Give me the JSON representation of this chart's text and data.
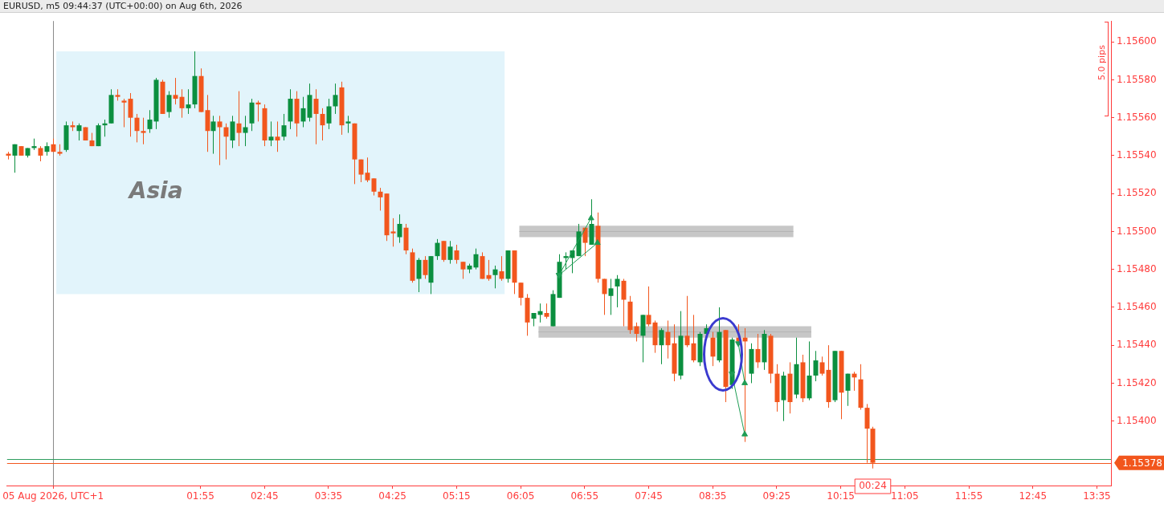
{
  "chart_data": {
    "type": "candlestick",
    "title": "EURUSD, m5 09:44:37 (UTC+00:00) on Aug 6th, 2026",
    "x": [
      "2026-08-05T23:25",
      "2026-08-05T23:30",
      "2026-08-05T23:35",
      "2026-08-05T23:40",
      "2026-08-05T23:45",
      "2026-08-05T23:50",
      "2026-08-05T23:55",
      "2026-08-06T00:00",
      "2026-08-06T00:05",
      "2026-08-06T00:10",
      "2026-08-06T00:15",
      "2026-08-06T00:20",
      "2026-08-06T00:25",
      "2026-08-06T00:30",
      "2026-08-06T00:35",
      "2026-08-06T00:40",
      "2026-08-06T00:45",
      "2026-08-06T00:50",
      "2026-08-06T00:55",
      "2026-08-06T01:00",
      "2026-08-06T01:05",
      "2026-08-06T01:10",
      "2026-08-06T01:15",
      "2026-08-06T01:20",
      "2026-08-06T01:25",
      "2026-08-06T01:30",
      "2026-08-06T01:35",
      "2026-08-06T01:40",
      "2026-08-06T01:45",
      "2026-08-06T01:50",
      "2026-08-06T01:55",
      "2026-08-06T02:00",
      "2026-08-06T02:05",
      "2026-08-06T02:10",
      "2026-08-06T02:15",
      "2026-08-06T02:20",
      "2026-08-06T02:25",
      "2026-08-06T02:30",
      "2026-08-06T02:35",
      "2026-08-06T02:40",
      "2026-08-06T02:45",
      "2026-08-06T02:50",
      "2026-08-06T02:55",
      "2026-08-06T03:00",
      "2026-08-06T03:05",
      "2026-08-06T03:10",
      "2026-08-06T03:15",
      "2026-08-06T03:20",
      "2026-08-06T03:25",
      "2026-08-06T03:30",
      "2026-08-06T03:35",
      "2026-08-06T03:40",
      "2026-08-06T03:45",
      "2026-08-06T03:50",
      "2026-08-06T03:55",
      "2026-08-06T04:00",
      "2026-08-06T04:05",
      "2026-08-06T04:10",
      "2026-08-06T04:15",
      "2026-08-06T04:20",
      "2026-08-06T04:25",
      "2026-08-06T04:30",
      "2026-08-06T04:35",
      "2026-08-06T04:40",
      "2026-08-06T04:45",
      "2026-08-06T04:50",
      "2026-08-06T04:55",
      "2026-08-06T05:00",
      "2026-08-06T05:05",
      "2026-08-06T05:10",
      "2026-08-06T05:15",
      "2026-08-06T05:20",
      "2026-08-06T05:25",
      "2026-08-06T05:30",
      "2026-08-06T05:35",
      "2026-08-06T05:40",
      "2026-08-06T05:45",
      "2026-08-06T05:50",
      "2026-08-06T05:55",
      "2026-08-06T06:00",
      "2026-08-06T06:05",
      "2026-08-06T06:10",
      "2026-08-06T06:15",
      "2026-08-06T06:20",
      "2026-08-06T06:25",
      "2026-08-06T06:30",
      "2026-08-06T06:35",
      "2026-08-06T06:40",
      "2026-08-06T06:45",
      "2026-08-06T06:50",
      "2026-08-06T06:55",
      "2026-08-06T07:00",
      "2026-08-06T07:05",
      "2026-08-06T07:10",
      "2026-08-06T07:15",
      "2026-08-06T07:20",
      "2026-08-06T07:25",
      "2026-08-06T07:30",
      "2026-08-06T07:35",
      "2026-08-06T07:40",
      "2026-08-06T07:45",
      "2026-08-06T07:50",
      "2026-08-06T07:55",
      "2026-08-06T08:00",
      "2026-08-06T08:05",
      "2026-08-06T08:10",
      "2026-08-06T08:15",
      "2026-08-06T08:20",
      "2026-08-06T08:25",
      "2026-08-06T08:30",
      "2026-08-06T08:35",
      "2026-08-06T08:40",
      "2026-08-06T08:45",
      "2026-08-06T08:50",
      "2026-08-06T08:55",
      "2026-08-06T09:00",
      "2026-08-06T09:05",
      "2026-08-06T09:10",
      "2026-08-06T09:15",
      "2026-08-06T09:20",
      "2026-08-06T09:25",
      "2026-08-06T09:30",
      "2026-08-06T09:35",
      "2026-08-06T09:40",
      "2026-08-06T09:45",
      "2026-08-06T09:50",
      "2026-08-06T09:55",
      "2026-08-06T10:00",
      "2026-08-06T10:05",
      "2026-08-06T10:10",
      "2026-08-06T10:15",
      "2026-08-06T10:20",
      "2026-08-06T10:25",
      "2026-08-06T10:30",
      "2026-08-06T10:35",
      "2026-08-06T10:40"
    ],
    "ohlc": [
      [
        1.15541,
        1.15542,
        1.15538,
        1.1554
      ],
      [
        1.1554,
        1.15546,
        1.15531,
        1.15546
      ],
      [
        1.15545,
        1.15545,
        1.1554,
        1.1554
      ],
      [
        1.1554,
        1.15544,
        1.15539,
        1.15544
      ],
      [
        1.15544,
        1.15549,
        1.15543,
        1.15545
      ],
      [
        1.15544,
        1.15545,
        1.15537,
        1.1554
      ],
      [
        1.15542,
        1.15547,
        1.1554,
        1.15545
      ],
      [
        1.15546,
        1.15549,
        1.15542,
        1.15542
      ],
      [
        1.15542,
        1.15546,
        1.1554,
        1.15541
      ],
      [
        1.15543,
        1.15558,
        1.15542,
        1.15556
      ],
      [
        1.15556,
        1.15558,
        1.15553,
        1.15555
      ],
      [
        1.15553,
        1.15557,
        1.15548,
        1.15556
      ],
      [
        1.15555,
        1.15555,
        1.15548,
        1.15548
      ],
      [
        1.15548,
        1.15552,
        1.15545,
        1.15545
      ],
      [
        1.15545,
        1.15557,
        1.15545,
        1.15556
      ],
      [
        1.15556,
        1.15559,
        1.1555,
        1.15557
      ],
      [
        1.15557,
        1.15575,
        1.15557,
        1.15572
      ],
      [
        1.15572,
        1.15575,
        1.15569,
        1.15571
      ],
      [
        1.15569,
        1.1557,
        1.15555,
        1.15568
      ],
      [
        1.1557,
        1.15573,
        1.1555,
        1.1556
      ],
      [
        1.1556,
        1.15562,
        1.15547,
        1.15553
      ],
      [
        1.15553,
        1.1556,
        1.15546,
        1.15552
      ],
      [
        1.15554,
        1.15564,
        1.15552,
        1.15559
      ],
      [
        1.15558,
        1.15581,
        1.15554,
        1.1558
      ],
      [
        1.15579,
        1.1558,
        1.15562,
        1.15562
      ],
      [
        1.15563,
        1.15574,
        1.1556,
        1.15572
      ],
      [
        1.15572,
        1.15581,
        1.15567,
        1.1557
      ],
      [
        1.15571,
        1.15575,
        1.1556,
        1.15565
      ],
      [
        1.15565,
        1.15575,
        1.15562,
        1.15567
      ],
      [
        1.15567,
        1.15595,
        1.15565,
        1.15582
      ],
      [
        1.15582,
        1.15586,
        1.15563,
        1.15563
      ],
      [
        1.15564,
        1.15572,
        1.15542,
        1.15553
      ],
      [
        1.15553,
        1.15561,
        1.15541,
        1.15558
      ],
      [
        1.15558,
        1.15561,
        1.15535,
        1.15555
      ],
      [
        1.15555,
        1.15557,
        1.15538,
        1.1555
      ],
      [
        1.15548,
        1.15561,
        1.15544,
        1.15558
      ],
      [
        1.15557,
        1.15574,
        1.15545,
        1.15552
      ],
      [
        1.15552,
        1.15561,
        1.15545,
        1.15555
      ],
      [
        1.15557,
        1.1557,
        1.15553,
        1.15568
      ],
      [
        1.15568,
        1.15569,
        1.15558,
        1.15567
      ],
      [
        1.15565,
        1.15567,
        1.15545,
        1.15548
      ],
      [
        1.15548,
        1.15558,
        1.15545,
        1.1555
      ],
      [
        1.1555,
        1.15558,
        1.15542,
        1.15548
      ],
      [
        1.1555,
        1.15562,
        1.15548,
        1.15556
      ],
      [
        1.15558,
        1.15575,
        1.15554,
        1.1557
      ],
      [
        1.1557,
        1.15574,
        1.1555,
        1.15557
      ],
      [
        1.15558,
        1.15571,
        1.15555,
        1.15565
      ],
      [
        1.1556,
        1.15578,
        1.15558,
        1.15572
      ],
      [
        1.1557,
        1.15575,
        1.15546,
        1.15562
      ],
      [
        1.15562,
        1.15565,
        1.15548,
        1.15556
      ],
      [
        1.15557,
        1.1557,
        1.15554,
        1.15566
      ],
      [
        1.15566,
        1.15578,
        1.15562,
        1.15572
      ],
      [
        1.15576,
        1.15579,
        1.15551,
        1.15556
      ],
      [
        1.15557,
        1.15561,
        1.15552,
        1.15558
      ],
      [
        1.15557,
        1.15557,
        1.15525,
        1.15538
      ],
      [
        1.15538,
        1.15538,
        1.15526,
        1.1553
      ],
      [
        1.15531,
        1.15539,
        1.15526,
        1.15527
      ],
      [
        1.15528,
        1.15528,
        1.15519,
        1.15521
      ],
      [
        1.15521,
        1.15523,
        1.15511,
        1.15518
      ],
      [
        1.1552,
        1.1552,
        1.15495,
        1.15498
      ],
      [
        1.155,
        1.15507,
        1.15492,
        1.15499
      ],
      [
        1.15497,
        1.15509,
        1.15494,
        1.15504
      ],
      [
        1.15502,
        1.15504,
        1.15488,
        1.1549
      ],
      [
        1.15489,
        1.15491,
        1.15473,
        1.15474
      ],
      [
        1.15475,
        1.15486,
        1.15468,
        1.15485
      ],
      [
        1.15485,
        1.15487,
        1.15475,
        1.15477
      ],
      [
        1.15473,
        1.15487,
        1.15467,
        1.15487
      ],
      [
        1.15487,
        1.15496,
        1.15485,
        1.15494
      ],
      [
        1.15495,
        1.15495,
        1.15484,
        1.15485
      ],
      [
        1.15485,
        1.15495,
        1.15483,
        1.15492
      ],
      [
        1.1549,
        1.15493,
        1.15483,
        1.15485
      ],
      [
        1.15484,
        1.15484,
        1.15475,
        1.1548
      ],
      [
        1.1548,
        1.15483,
        1.15478,
        1.15482
      ],
      [
        1.15481,
        1.15491,
        1.1548,
        1.15488
      ],
      [
        1.15487,
        1.15489,
        1.15475,
        1.15475
      ],
      [
        1.15477,
        1.15485,
        1.15474,
        1.15475
      ],
      [
        1.15477,
        1.15482,
        1.1547,
        1.1548
      ],
      [
        1.15479,
        1.15487,
        1.15474,
        1.15475
      ],
      [
        1.15475,
        1.1549,
        1.15473,
        1.1549
      ],
      [
        1.1549,
        1.1549,
        1.15467,
        1.15473
      ],
      [
        1.15473,
        1.15473,
        1.15461,
        1.15465
      ],
      [
        1.15465,
        1.15467,
        1.15445,
        1.15452
      ],
      [
        1.15454,
        1.15457,
        1.1545,
        1.15457
      ],
      [
        1.15456,
        1.15462,
        1.15452,
        1.15458
      ],
      [
        1.15457,
        1.15462,
        1.15454,
        1.15455
      ],
      [
        1.1545,
        1.15469,
        1.1545,
        1.15467
      ],
      [
        1.15465,
        1.15488,
        1.15465,
        1.15484
      ],
      [
        1.15486,
        1.15489,
        1.1548,
        1.15487
      ],
      [
        1.15486,
        1.1549,
        1.15478,
        1.1549
      ],
      [
        1.15487,
        1.15504,
        1.15487,
        1.155
      ],
      [
        1.15502,
        1.15502,
        1.15487,
        1.15494
      ],
      [
        1.15493,
        1.15517,
        1.15493,
        1.15504
      ],
      [
        1.15503,
        1.1551,
        1.15473,
        1.15475
      ],
      [
        1.15475,
        1.15475,
        1.15456,
        1.15467
      ],
      [
        1.15466,
        1.15475,
        1.15456,
        1.1547
      ],
      [
        1.15471,
        1.15477,
        1.1546,
        1.15475
      ],
      [
        1.15474,
        1.15475,
        1.1545,
        1.15464
      ],
      [
        1.15463,
        1.15466,
        1.15446,
        1.15448
      ],
      [
        1.1545,
        1.15452,
        1.15442,
        1.15446
      ],
      [
        1.15445,
        1.15456,
        1.15431,
        1.15456
      ],
      [
        1.15456,
        1.15471,
        1.1545,
        1.15451
      ],
      [
        1.15452,
        1.15453,
        1.15436,
        1.1544
      ],
      [
        1.1544,
        1.15449,
        1.1543,
        1.15448
      ],
      [
        1.15447,
        1.15453,
        1.15433,
        1.1544
      ],
      [
        1.15441,
        1.15451,
        1.15421,
        1.15425
      ],
      [
        1.15424,
        1.15458,
        1.15422,
        1.15445
      ],
      [
        1.15445,
        1.15466,
        1.15439,
        1.1544
      ],
      [
        1.15441,
        1.15456,
        1.15431,
        1.15432
      ],
      [
        1.15431,
        1.15447,
        1.15429,
        1.15446
      ],
      [
        1.15446,
        1.15451,
        1.15445,
        1.15449
      ],
      [
        1.15444,
        1.15447,
        1.15429,
        1.15434
      ],
      [
        1.15432,
        1.1546,
        1.15431,
        1.15447
      ],
      [
        1.15448,
        1.15448,
        1.1541,
        1.15418
      ],
      [
        1.15419,
        1.15444,
        1.15417,
        1.15443
      ],
      [
        1.15444,
        1.15451,
        1.15441,
        1.15442
      ],
      [
        1.15444,
        1.15449,
        1.15389,
        1.15442
      ],
      [
        1.15425,
        1.15441,
        1.1542,
        1.15438
      ],
      [
        1.15438,
        1.15446,
        1.15428,
        1.15431
      ],
      [
        1.15431,
        1.15448,
        1.15427,
        1.15446
      ],
      [
        1.15445,
        1.15446,
        1.1542,
        1.15425
      ],
      [
        1.15425,
        1.1543,
        1.15405,
        1.1541
      ],
      [
        1.15411,
        1.15426,
        1.154,
        1.15424
      ],
      [
        1.15425,
        1.15431,
        1.15404,
        1.1541
      ],
      [
        1.15414,
        1.15444,
        1.15412,
        1.1543
      ],
      [
        1.15431,
        1.15435,
        1.1541,
        1.15412
      ],
      [
        1.15412,
        1.15442,
        1.15411,
        1.15424
      ],
      [
        1.15424,
        1.15437,
        1.15421,
        1.15432
      ],
      [
        1.15431,
        1.15434,
        1.15424,
        1.15425
      ],
      [
        1.15427,
        1.1544,
        1.15407,
        1.1541
      ],
      [
        1.15411,
        1.15437,
        1.1541,
        1.15437
      ],
      [
        1.15437,
        1.15437,
        1.15401,
        1.15415
      ],
      [
        1.15416,
        1.15425,
        1.15408,
        1.15425
      ],
      [
        1.15425,
        1.15426,
        1.15416,
        1.15423
      ],
      [
        1.15422,
        1.1543,
        1.15406,
        1.15407
      ],
      [
        1.15407,
        1.15409,
        1.15378,
        1.15396
      ],
      [
        1.15396,
        1.15397,
        1.15375,
        1.15378
      ]
    ],
    "colors": [
      "#f2561d",
      "#0b8f3f",
      "#f2561d",
      "#0b8f3f",
      "#0b8f3f",
      "#f2561d",
      "#0b8f3f",
      "#f2561d",
      "#f2561d",
      "#0b8f3f",
      "#f2561d",
      "#0b8f3f",
      "#f2561d",
      "#f2561d",
      "#0b8f3f",
      "#0b8f3f",
      "#0b8f3f",
      "#f2561d",
      "#f2561d",
      "#f2561d",
      "#f2561d",
      "#f2561d",
      "#0b8f3f",
      "#0b8f3f",
      "#f2561d",
      "#0b8f3f",
      "#f2561d",
      "#f2561d",
      "#0b8f3f",
      "#0b8f3f",
      "#f2561d",
      "#f2561d",
      "#0b8f3f",
      "#f2561d",
      "#f2561d",
      "#0b8f3f",
      "#f2561d",
      "#0b8f3f",
      "#0b8f3f",
      "#f2561d",
      "#f2561d",
      "#0b8f3f",
      "#f2561d",
      "#0b8f3f",
      "#0b8f3f",
      "#f2561d",
      "#0b8f3f",
      "#0b8f3f",
      "#f2561d",
      "#f2561d",
      "#0b8f3f",
      "#0b8f3f",
      "#f2561d",
      "#0b8f3f",
      "#f2561d",
      "#f2561d",
      "#f2561d",
      "#f2561d",
      "#f2561d",
      "#f2561d",
      "#f2561d",
      "#0b8f3f",
      "#f2561d",
      "#f2561d",
      "#0b8f3f",
      "#f2561d",
      "#0b8f3f",
      "#0b8f3f",
      "#f2561d",
      "#0b8f3f",
      "#f2561d",
      "#f2561d",
      "#0b8f3f",
      "#0b8f3f",
      "#f2561d",
      "#f2561d",
      "#0b8f3f",
      "#f2561d",
      "#0b8f3f",
      "#f2561d",
      "#f2561d",
      "#f2561d",
      "#0b8f3f",
      "#0b8f3f",
      "#f2561d",
      "#0b8f3f",
      "#0b8f3f",
      "#0b8f3f",
      "#0b8f3f",
      "#0b8f3f",
      "#f2561d",
      "#0b8f3f",
      "#f2561d",
      "#f2561d",
      "#0b8f3f",
      "#0b8f3f",
      "#f2561d",
      "#f2561d",
      "#f2561d",
      "#0b8f3f",
      "#f2561d",
      "#f2561d",
      "#0b8f3f",
      "#f2561d",
      "#f2561d",
      "#0b8f3f",
      "#f2561d",
      "#f2561d",
      "#0b8f3f",
      "#0b8f3f",
      "#f2561d",
      "#0b8f3f",
      "#f2561d",
      "#0b8f3f",
      "#f2561d",
      "#f2561d",
      "#0b8f3f",
      "#f2561d",
      "#0b8f3f",
      "#f2561d",
      "#f2561d",
      "#0b8f3f",
      "#f2561d",
      "#0b8f3f",
      "#f2561d",
      "#0b8f3f",
      "#0b8f3f",
      "#f2561d",
      "#f2561d",
      "#0b8f3f",
      "#f2561d",
      "#0b8f3f",
      "#f2561d",
      "#f2561d",
      "#f2561d",
      "#f2561d"
    ],
    "series": [
      {
        "type": "line",
        "x": [
          "2026-08-06T06:35",
          "2026-08-06T07:00"
        ],
        "values": [
          1.15477,
          1.15507
        ],
        "color": "#1f9d55",
        "marker": "triangle"
      },
      {
        "type": "line",
        "x": [
          "2026-08-06T06:35",
          "2026-08-06T07:05"
        ],
        "values": [
          1.15477,
          1.15494
        ],
        "color": "#1f9d55",
        "marker": "triangle"
      },
      {
        "type": "line",
        "x": [
          "2026-08-06T08:55",
          "2026-08-06T09:00"
        ],
        "values": [
          1.15441,
          1.1542
        ],
        "color": "#1f9d55",
        "marker": "triangle"
      },
      {
        "type": "line",
        "x": [
          "2026-08-06T08:50",
          "2026-08-06T09:00"
        ],
        "values": [
          1.15425,
          1.15393
        ],
        "color": "#1f9d55",
        "marker": "triangle"
      },
      {
        "type": "line",
        "x": [
          "2026-08-06T06:04",
          "2026-08-06T09:38"
        ],
        "values": [
          1.155,
          1.155
        ],
        "lower": [
          1.15497,
          1.15497
        ],
        "upper": [
          1.15503,
          1.15503
        ],
        "color": "#b4b4b4"
      },
      {
        "type": "line",
        "x": [
          "2026-08-06T06:19",
          "2026-08-06T09:52"
        ],
        "values": [
          1.15447,
          1.15447
        ],
        "lower": [
          1.15444,
          1.15444
        ],
        "upper": [
          1.1545,
          1.1545
        ],
        "color": "#b4b4b4"
      }
    ],
    "xlim": [
      "2026-08-05T23:24",
      "2026-08-06T13:46"
    ],
    "xticks": [
      {
        "value": "2026-08-06T00:00",
        "label": "05 Aug 2026, UTC+1"
      },
      {
        "value": "2026-08-06T01:55",
        "label": "01:55"
      },
      {
        "value": "2026-08-06T02:45",
        "label": "02:45"
      },
      {
        "value": "2026-08-06T03:35",
        "label": "03:35"
      },
      {
        "value": "2026-08-06T04:25",
        "label": "04:25"
      },
      {
        "value": "2026-08-06T05:15",
        "label": "05:15"
      },
      {
        "value": "2026-08-06T06:05",
        "label": "06:05"
      },
      {
        "value": "2026-08-06T06:55",
        "label": "06:55"
      },
      {
        "value": "2026-08-06T07:45",
        "label": "07:45"
      },
      {
        "value": "2026-08-06T08:35",
        "label": "08:35"
      },
      {
        "value": "2026-08-06T09:25",
        "label": "09:25"
      },
      {
        "value": "2026-08-06T10:15",
        "label": "10:15"
      },
      {
        "value": "2026-08-06T11:05",
        "label": "11:05"
      },
      {
        "value": "2026-08-06T11:55",
        "label": "11:55"
      },
      {
        "value": "2026-08-06T12:45",
        "label": "12:45"
      },
      {
        "value": "2026-08-06T13:35",
        "label": "13:35"
      }
    ],
    "ylim": [
      1.15366,
      1.15611
    ],
    "yticks": [
      {
        "value": 1.154,
        "label": "1.15400"
      },
      {
        "value": 1.1542,
        "label": "1.15420"
      },
      {
        "value": 1.1544,
        "label": "1.15440"
      },
      {
        "value": 1.1546,
        "label": "1.15460"
      },
      {
        "value": 1.1548,
        "label": "1.15480"
      },
      {
        "value": 1.155,
        "label": "1.15500"
      },
      {
        "value": 1.1552,
        "label": "1.15520"
      },
      {
        "value": 1.1554,
        "label": "1.15540"
      },
      {
        "value": 1.1556,
        "label": "1.15560"
      },
      {
        "value": 1.1558,
        "label": "1.15580"
      },
      {
        "value": 1.156,
        "label": "1.15600"
      }
    ],
    "bands": [
      {
        "axis": "x",
        "from": "2026-08-06T00:05",
        "to": "2026-08-06T05:50",
        "label": "Asia",
        "color": "#9fd9f2"
      }
    ],
    "ref_lines": [
      {
        "axis": "x",
        "value": "2026-08-06T00:00",
        "color": "#8a8a8a"
      },
      {
        "axis": "y",
        "value": 1.1538,
        "color": "#2e9e5e"
      },
      {
        "axis": "y",
        "value": 1.15378,
        "label": "1.15378",
        "color": "#f2561d"
      }
    ],
    "annotations": [
      "5.0 pips",
      "00:24"
    ]
  }
}
